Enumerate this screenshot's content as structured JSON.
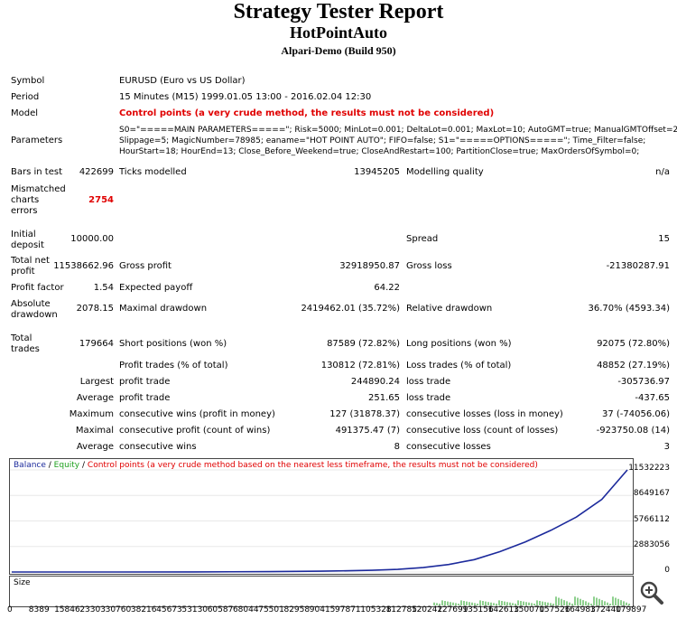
{
  "header": {
    "title": "Strategy Tester Report",
    "expert": "HotPointAuto",
    "server": "Alpari-Demo (Build 950)"
  },
  "report": {
    "symbol_label": "Symbol",
    "symbol_value": "EURUSD (Euro vs US Dollar)",
    "period_label": "Period",
    "period_value": "15 Minutes (M15) 1999.01.05 13:00 - 2016.02.04 12:30",
    "model_label": "Model",
    "model_value": "Control points (a very crude method, the results must not be considered)",
    "parameters_label": "Parameters",
    "parameters_line1": "S0=\"=====MAIN PARAMETERS=====\"; Risk=5000; MinLot=0.001; DeltaLot=0.001; MaxLot=10; AutoGMT=true; ManualGMTOffset=2;",
    "parameters_line2": "Slippage=5; MagicNumber=78985; eaname=\"HOT POINT AUTO\"; FIFO=false; S1=\"=====OPTIONS=====\"; Time_Filter=false;",
    "parameters_line3": "HourStart=18; HourEnd=13; Close_Before_Weekend=true; CloseAndRestart=100; PartitionClose=true; MaxOrdersOfSymbol=0;",
    "bars_label": "Bars in test",
    "bars_value": "422699",
    "ticks_label": "Ticks modelled",
    "ticks_value": "13945205",
    "quality_label": "Modelling quality",
    "quality_value": "n/a",
    "mismatch_label1": "Mismatched",
    "mismatch_label2": "charts",
    "mismatch_label3": "errors",
    "mismatch_value": "2754",
    "deposit_label1": "Initial",
    "deposit_label2": "deposit",
    "deposit_value": "10000.00",
    "spread_label": "Spread",
    "spread_value": "15",
    "netprofit_label1": "Total net",
    "netprofit_label2": "profit",
    "netprofit_value": "11538662.96",
    "grossprofit_label": "Gross profit",
    "grossprofit_value": "32918950.87",
    "grossloss_label": "Gross loss",
    "grossloss_value": "-21380287.91",
    "pf_label": "Profit factor",
    "pf_value": "1.54",
    "ep_label": "Expected payoff",
    "ep_value": "64.22",
    "absdd_label1": "Absolute",
    "absdd_label2": "drawdown",
    "absdd_value": "2078.15",
    "maxdd_label": "Maximal drawdown",
    "maxdd_value": "2419462.01 (35.72%)",
    "reldd_label": "Relative drawdown",
    "reldd_value": "36.70% (4593.34)",
    "trades_label1": "Total",
    "trades_label2": "trades",
    "trades_value": "179664",
    "short_label": "Short positions (won %)",
    "short_value": "87589 (72.82%)",
    "long_label": "Long positions (won %)",
    "long_value": "92075 (72.80%)",
    "ptrades_label": "Profit trades (% of total)",
    "ptrades_value": "130812 (72.81%)",
    "ltrades_label": "Loss trades (% of total)",
    "ltrades_value": "48852 (27.19%)",
    "largest_label": "Largest",
    "largest_profit_label": "profit trade",
    "largest_profit_value": "244890.24",
    "largest_loss_label": "loss trade",
    "largest_loss_value": "-305736.97",
    "average_label": "Average",
    "average_profit_label": "profit trade",
    "average_profit_value": "251.65",
    "average_loss_label": "loss trade",
    "average_loss_value": "-437.65",
    "maximum_label": "Maximum",
    "maxwins_label": "consecutive wins (profit in money)",
    "maxwins_value": "127 (31878.37)",
    "maxlosses_label": "consecutive losses (loss in money)",
    "maxlosses_value": "37 (-74056.06)",
    "maximal_label": "Maximal",
    "maxprofit_label": "consecutive profit (count of wins)",
    "maxprofit_value": "491375.47 (7)",
    "maxloss_label": "consecutive loss (count of losses)",
    "maxloss_value": "-923750.08 (14)",
    "avg2_label": "Average",
    "avgwins_label": "consecutive wins",
    "avgwins_value": "8",
    "avglosses_label": "consecutive losses",
    "avglosses_value": "3"
  },
  "chart_legend": {
    "balance": "Balance",
    "sep1": " / ",
    "equity": "Equity",
    "sep2": " / ",
    "note": "Control points (a very crude method based on the nearest less timeframe, the results must not be considered)",
    "size": "Size"
  },
  "colors": {
    "balance": "#1c2a9c",
    "equity": "#1ea01e",
    "note": "#e00000"
  },
  "chart_data": {
    "type": "line",
    "series": [
      {
        "name": "Balance",
        "points": [
          [
            0,
            0
          ],
          [
            30760,
            3000
          ],
          [
            53130,
            10000
          ],
          [
            75501,
            40000
          ],
          [
            90415,
            90000
          ],
          [
            105328,
            190000
          ],
          [
            112785,
            300000
          ],
          [
            120242,
            500000
          ],
          [
            127699,
            850000
          ],
          [
            135156,
            1400000
          ],
          [
            142613,
            2300000
          ],
          [
            150070,
            3400000
          ],
          [
            157526,
            4700000
          ],
          [
            164983,
            6200000
          ],
          [
            172440,
            8200000
          ],
          [
            179897,
            11532223
          ]
        ]
      }
    ],
    "yticks": [
      "11532223",
      "8649167",
      "5766112",
      "2883056",
      "0"
    ],
    "xticks": [
      "0",
      "8389",
      "15846",
      "23303",
      "30760",
      "38216",
      "45673",
      "53130",
      "60587",
      "68044",
      "75501",
      "82958",
      "90415",
      "97871",
      "105328",
      "112785",
      "120242",
      "127699",
      "135156",
      "142613",
      "150070",
      "157526",
      "164983",
      "172440",
      "179897"
    ],
    "ylim": [
      0,
      11532223
    ],
    "xlim": [
      0,
      179897
    ]
  }
}
